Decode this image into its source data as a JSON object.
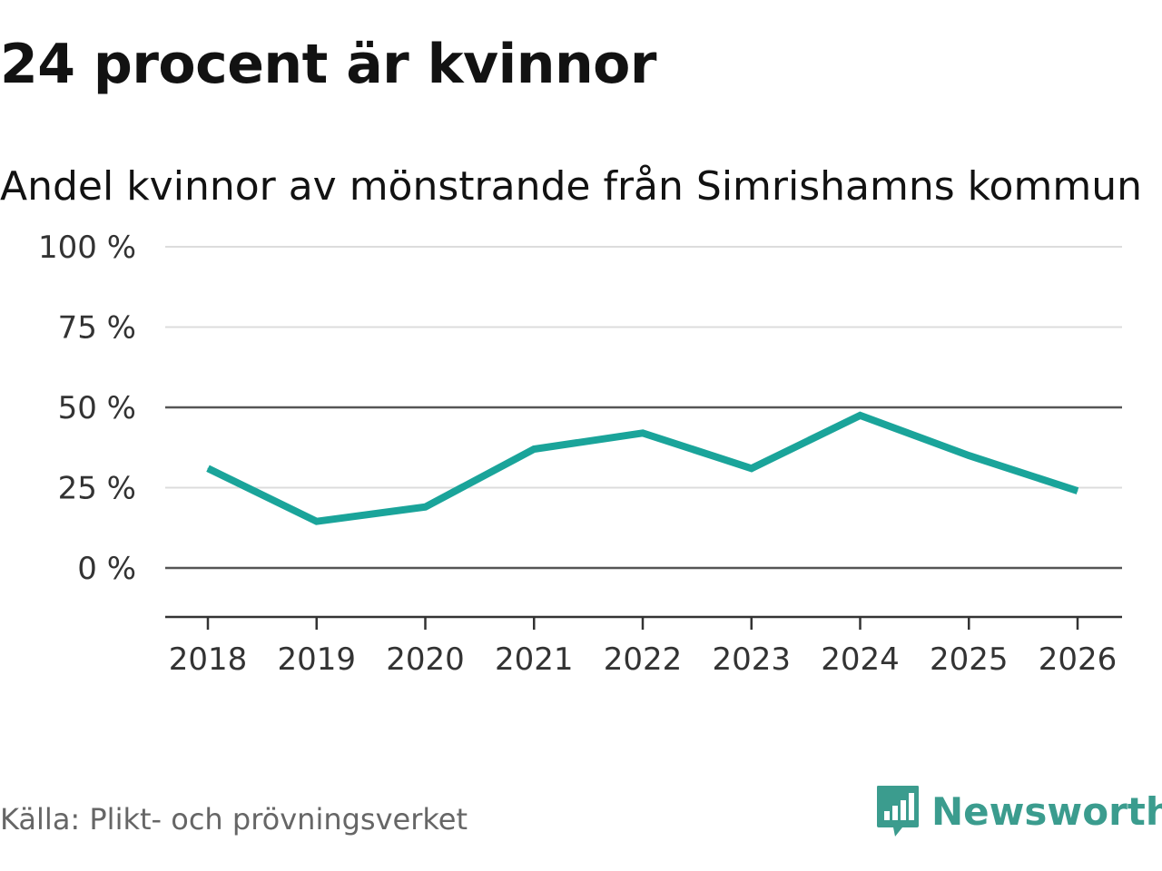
{
  "chart_data": {
    "type": "line",
    "title": "24 procent är kvinnor",
    "subtitle": "Andel kvinnor av mönstrande från Simrishamns kommun",
    "categories": [
      "2018",
      "2019",
      "2020",
      "2021",
      "2022",
      "2023",
      "2024",
      "2025",
      "2026"
    ],
    "series": [
      {
        "name": "Andel kvinnor",
        "values": [
          31,
          14.5,
          19,
          37,
          42,
          31,
          47.5,
          35,
          24
        ]
      }
    ],
    "y_ticks": [
      0,
      25,
      50,
      75,
      100
    ],
    "y_tick_labels": [
      "0 %",
      "25 %",
      "50 %",
      "75 %",
      "100 %"
    ],
    "ylim": [
      -15,
      100
    ],
    "xlabel": "",
    "ylabel": "",
    "grid": true,
    "line_color": "#1aa49a"
  },
  "source": "Källa: Plikt- och prövningsverket",
  "brand": {
    "name": "Newsworthy",
    "icon": "newsworthy-logo-icon",
    "color": "#3b9c8e"
  }
}
